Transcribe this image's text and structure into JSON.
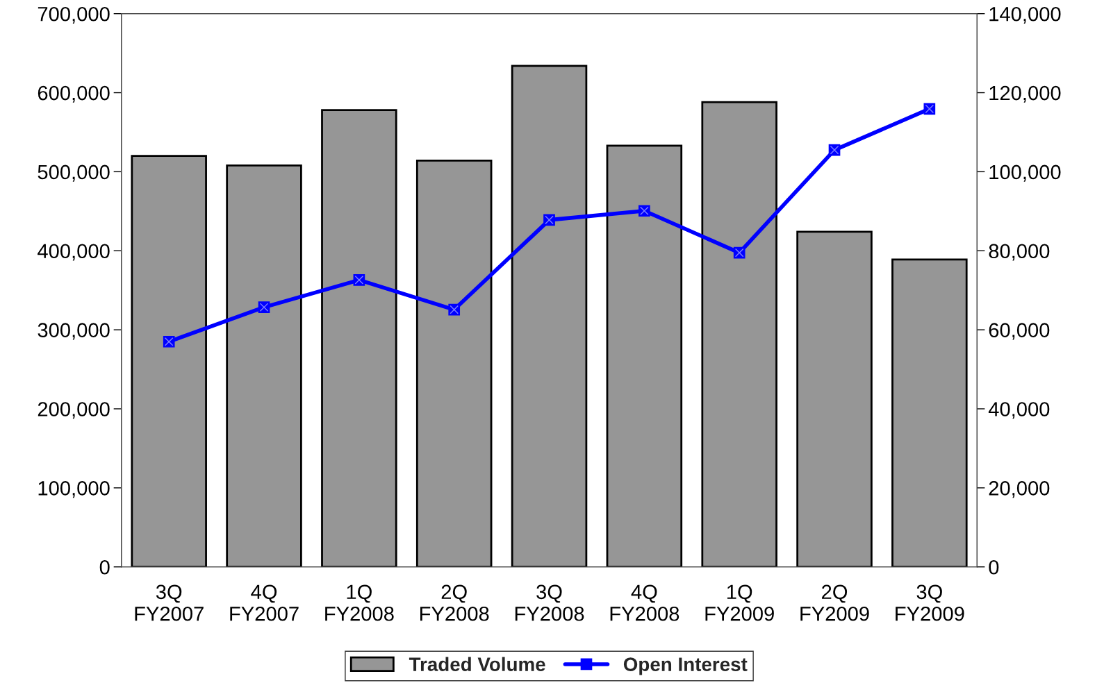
{
  "chart_data": {
    "type": "bar",
    "categories": [
      "3Q\nFY2007",
      "4Q\nFY2007",
      "1Q\nFY2008",
      "2Q\nFY2008",
      "3Q\nFY2008",
      "4Q\nFY2008",
      "1Q\nFY2009",
      "2Q\nFY2009",
      "3Q\nFY2009"
    ],
    "series": [
      {
        "name": "Traded Volume",
        "color": "#969696",
        "values": [
          520000,
          508000,
          578000,
          514000,
          634000,
          533000,
          588000,
          424000,
          389000
        ]
      },
      {
        "name": "Open Interest",
        "type": "line",
        "axis": "y2",
        "color": "#0000ff",
        "marker": "square",
        "line_style": "solid",
        "values": [
          57000,
          65700,
          72600,
          65100,
          87800,
          90100,
          79500,
          105500,
          115900
        ]
      }
    ],
    "ylim": [
      0,
      700000
    ],
    "yticks": [
      {
        "value": 0,
        "label": "0"
      },
      {
        "value": 100000,
        "label": "100,000"
      },
      {
        "value": 200000,
        "label": "200,000"
      },
      {
        "value": 300000,
        "label": "300,000"
      },
      {
        "value": 400000,
        "label": "400,000"
      },
      {
        "value": 500000,
        "label": "500,000"
      },
      {
        "value": 600000,
        "label": "600,000"
      },
      {
        "value": 700000,
        "label": "700,000"
      }
    ],
    "y2lim": [
      0,
      140000
    ],
    "y2ticks": [
      {
        "value": 0,
        "label": "0"
      },
      {
        "value": 20000,
        "label": "20,000"
      },
      {
        "value": 40000,
        "label": "40,000"
      },
      {
        "value": 60000,
        "label": "60,000"
      },
      {
        "value": 80000,
        "label": "80,000"
      },
      {
        "value": 100000,
        "label": "100,000"
      },
      {
        "value": 120000,
        "label": "120,000"
      },
      {
        "value": 140000,
        "label": "140,000"
      }
    ],
    "grid": false,
    "legend": "bottom"
  }
}
